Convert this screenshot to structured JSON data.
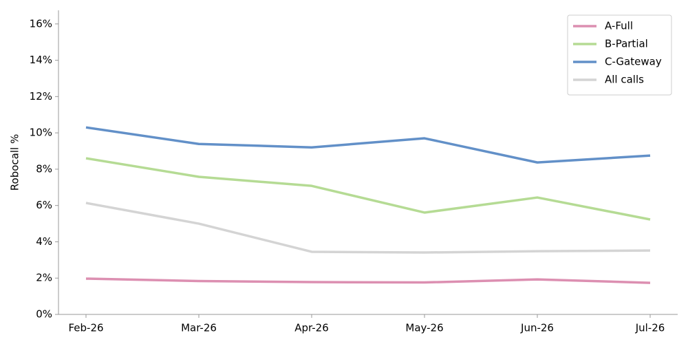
{
  "chart_data": {
    "type": "line",
    "y_label": "Robocall %",
    "categories": [
      "Feb-26",
      "Mar-26",
      "Apr-26",
      "May-26",
      "Jun-26",
      "Jul-26"
    ],
    "series": [
      {
        "name": "A-Full",
        "color": "#dc8fb1",
        "values": [
          1.97,
          1.84,
          1.78,
          1.76,
          1.93,
          1.74
        ]
      },
      {
        "name": "B-Partial",
        "color": "#b5db94",
        "values": [
          8.6,
          7.58,
          7.08,
          5.61,
          6.44,
          5.23
        ]
      },
      {
        "name": "C-Gateway",
        "color": "#6290c8",
        "values": [
          10.3,
          9.39,
          9.2,
          9.7,
          8.37,
          8.75
        ]
      },
      {
        "name": "All calls",
        "color": "#d4d4d4",
        "values": [
          6.14,
          5.0,
          3.45,
          3.41,
          3.48,
          3.52
        ]
      }
    ],
    "ylim": [
      0,
      16.75
    ],
    "yticks": [
      {
        "value": 0,
        "label": "0%"
      },
      {
        "value": 2,
        "label": "2%"
      },
      {
        "value": 4,
        "label": "4%"
      },
      {
        "value": 6,
        "label": "6%"
      },
      {
        "value": 8,
        "label": "8%"
      },
      {
        "value": 10,
        "label": "10%"
      },
      {
        "value": 12,
        "label": "12%"
      },
      {
        "value": 14,
        "label": "14%"
      },
      {
        "value": 16,
        "label": "16%"
      }
    ],
    "legend": "upper right"
  }
}
